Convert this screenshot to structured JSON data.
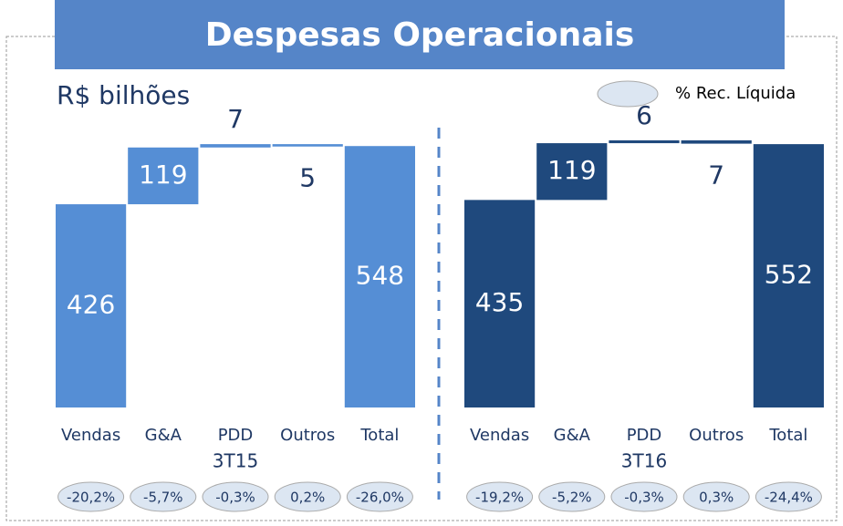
{
  "title": "Despesas Operacionais",
  "subtitle": "R$ bilhões",
  "legend": "% Rec. Líquida",
  "chart_data": [
    {
      "type": "waterfall",
      "xlabel": "3T15",
      "color": "#558ed5",
      "categories": [
        "Vendas",
        "G&A",
        "PDD",
        "Outros",
        "Total"
      ],
      "values": [
        426,
        119,
        7,
        -5,
        548
      ],
      "value_labels": [
        "426",
        "119",
        "7",
        "5",
        "548"
      ],
      "ylim": [
        0,
        600
      ],
      "rec_liquida": {
        "values": [
          -20.2,
          -5.7,
          -0.3,
          0.2,
          -26.0
        ],
        "value_labels": [
          "-20,2%",
          "-5,7%",
          "-0,3%",
          "0,2%",
          "-26,0%"
        ]
      }
    },
    {
      "type": "waterfall",
      "xlabel": "3T16",
      "color": "#1f497d",
      "categories": [
        "Vendas",
        "G&A",
        "PDD",
        "Outros",
        "Total"
      ],
      "values": [
        435,
        119,
        6,
        -7,
        552
      ],
      "value_labels": [
        "435",
        "119",
        "6",
        "7",
        "552"
      ],
      "ylim": [
        0,
        600
      ],
      "rec_liquida": {
        "values": [
          -19.2,
          -5.2,
          -0.3,
          0.3,
          -24.4
        ],
        "value_labels": [
          "-19,2%",
          "-5,2%",
          "-0,3%",
          "0,3%",
          "-24,4%"
        ]
      }
    }
  ]
}
